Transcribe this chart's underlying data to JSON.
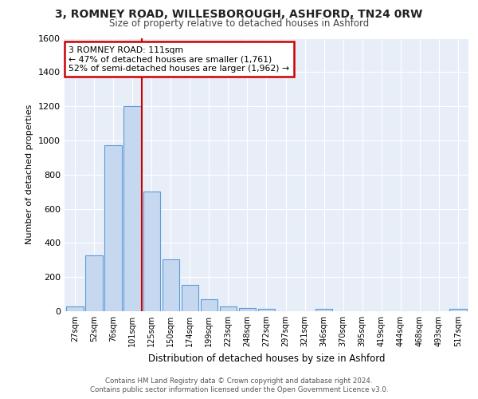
{
  "title1": "3, ROMNEY ROAD, WILLESBOROUGH, ASHFORD, TN24 0RW",
  "title2": "Size of property relative to detached houses in Ashford",
  "xlabel": "Distribution of detached houses by size in Ashford",
  "ylabel": "Number of detached properties",
  "categories": [
    "27sqm",
    "52sqm",
    "76sqm",
    "101sqm",
    "125sqm",
    "150sqm",
    "174sqm",
    "199sqm",
    "223sqm",
    "248sqm",
    "272sqm",
    "297sqm",
    "321sqm",
    "346sqm",
    "370sqm",
    "395sqm",
    "419sqm",
    "444sqm",
    "468sqm",
    "493sqm",
    "517sqm"
  ],
  "bar_values": [
    30,
    325,
    970,
    1200,
    700,
    305,
    155,
    70,
    30,
    18,
    15,
    0,
    0,
    12,
    0,
    0,
    0,
    0,
    0,
    0,
    12
  ],
  "bar_color": "#c5d8f0",
  "bar_edge_color": "#5b9bd5",
  "vline_x_index": 3.5,
  "annotation_line1": "3 ROMNEY ROAD: 111sqm",
  "annotation_line2": "← 47% of detached houses are smaller (1,761)",
  "annotation_line3": "52% of semi-detached houses are larger (1,962) →",
  "annotation_box_color": "#ffffff",
  "annotation_box_edge": "#cc0000",
  "vline_color": "#cc0000",
  "ylim": [
    0,
    1600
  ],
  "yticks": [
    0,
    200,
    400,
    600,
    800,
    1000,
    1200,
    1400,
    1600
  ],
  "plot_bg_color": "#e8eef8",
  "grid_color": "#ffffff",
  "footer1": "Contains HM Land Registry data © Crown copyright and database right 2024.",
  "footer2": "Contains public sector information licensed under the Open Government Licence v3.0."
}
